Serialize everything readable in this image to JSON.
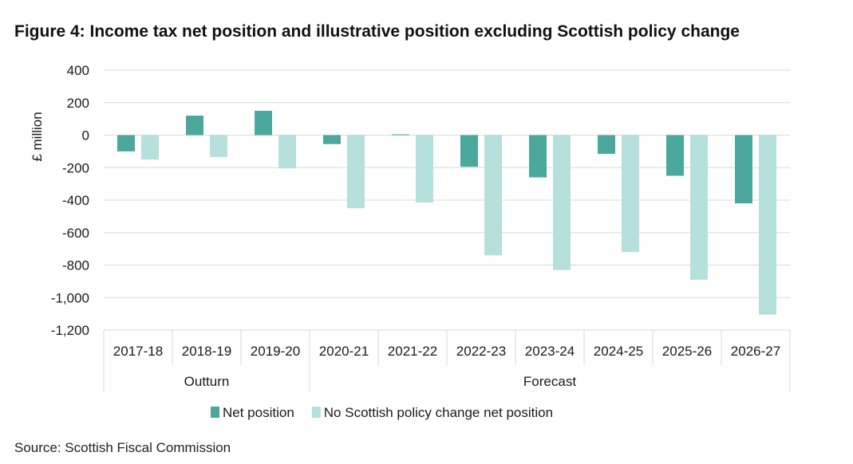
{
  "title": "Figure 4: Income tax net position and illustrative position excluding Scottish policy change",
  "source": "Source: Scottish Fiscal Commission",
  "chart_data": {
    "type": "bar",
    "ylabel": "£ million",
    "ylim": [
      -1200,
      400
    ],
    "yticks": [
      400,
      200,
      0,
      -200,
      -400,
      -600,
      -800,
      -1000,
      -1200
    ],
    "ytick_labels": [
      "400",
      "200",
      "0",
      "-200",
      "-400",
      "-600",
      "-800",
      "-1,000",
      "-1,200"
    ],
    "categories": [
      "2017-18",
      "2018-19",
      "2019-20",
      "2020-21",
      "2021-22",
      "2022-23",
      "2023-24",
      "2024-25",
      "2025-26",
      "2026-27"
    ],
    "groups": [
      {
        "label": "Outturn",
        "start": 0,
        "end": 2
      },
      {
        "label": "Forecast",
        "start": 3,
        "end": 9
      }
    ],
    "grid": true,
    "legend_position": "bottom",
    "series": [
      {
        "name": "Net position",
        "color": "#4ba89d",
        "values": [
          -100,
          120,
          150,
          -55,
          5,
          -195,
          -260,
          -115,
          -250,
          -420
        ]
      },
      {
        "name": "No Scottish policy change net position",
        "color": "#b5e0dc",
        "values": [
          -150,
          -135,
          -205,
          -450,
          -415,
          -740,
          -830,
          -720,
          -890,
          -1105
        ]
      }
    ]
  }
}
